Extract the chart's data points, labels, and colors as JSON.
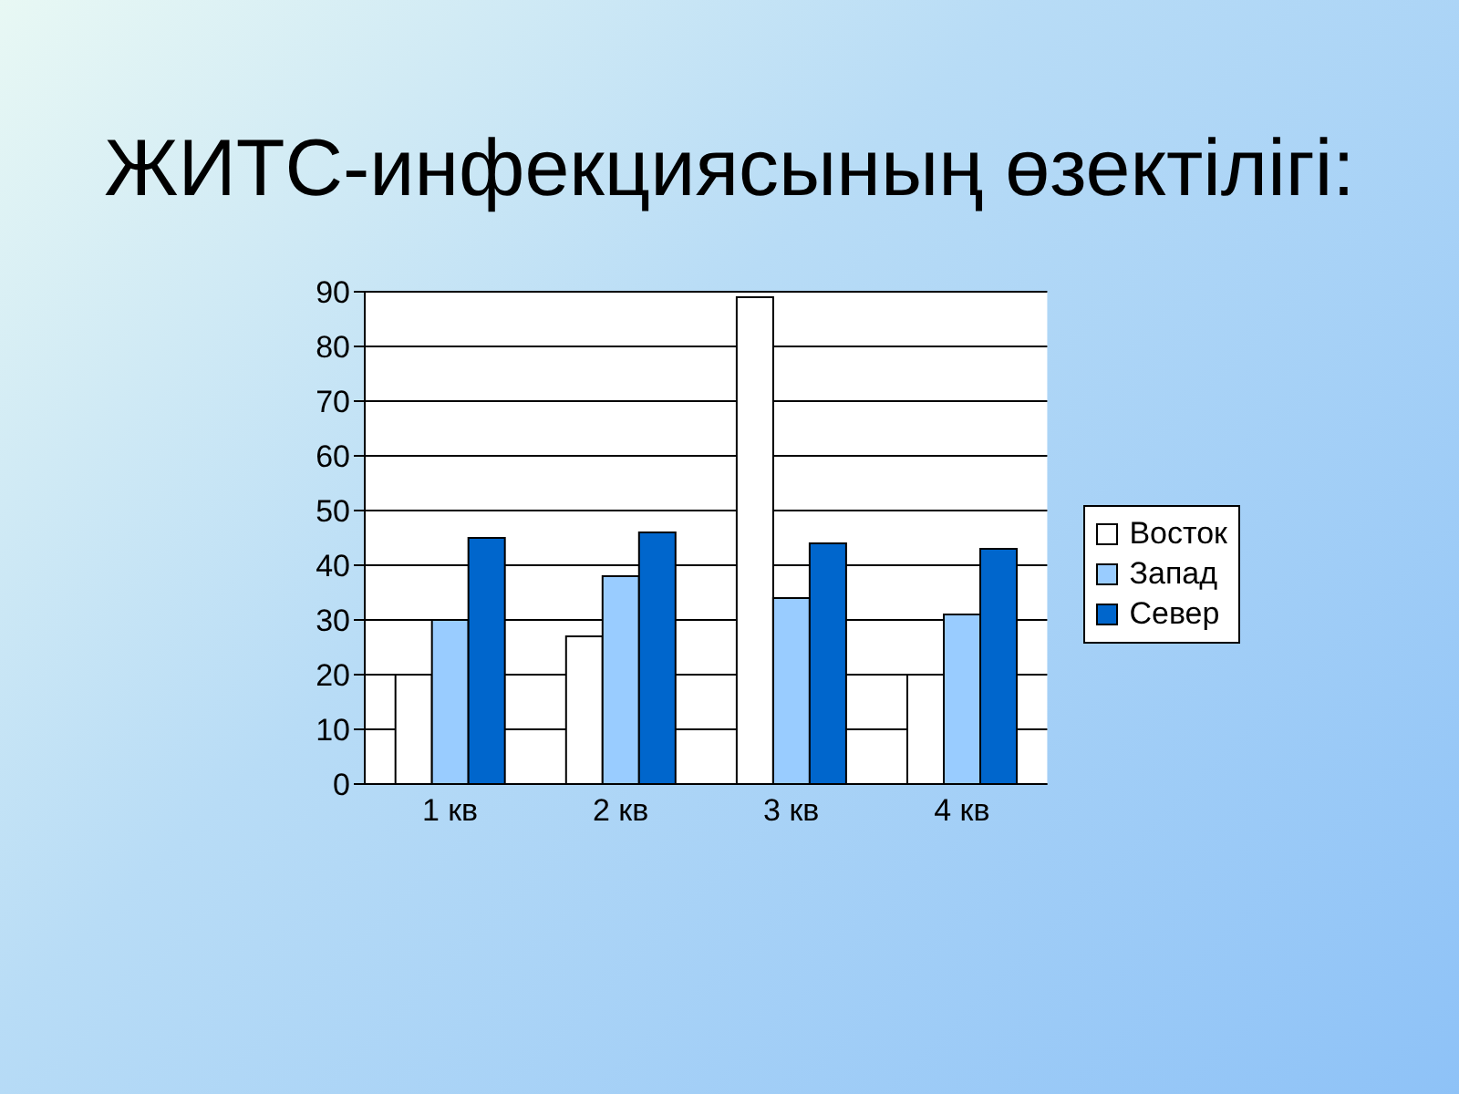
{
  "chart_data": {
    "type": "bar",
    "title": "ЖИТС-инфекциясының өзектілігі:",
    "categories": [
      "1 кв",
      "2 кв",
      "3 кв",
      "4 кв"
    ],
    "series": [
      {
        "name": "Восток",
        "color": "#ffffff",
        "values": [
          20,
          27,
          89,
          20
        ]
      },
      {
        "name": "Запад",
        "color": "#99ccff",
        "values": [
          30,
          38,
          34,
          31
        ]
      },
      {
        "name": "Север",
        "color": "#0066cc",
        "values": [
          45,
          46,
          44,
          43
        ]
      }
    ],
    "ylim": [
      0,
      90
    ],
    "yticks": [
      0,
      10,
      20,
      30,
      40,
      50,
      60,
      70,
      80,
      90
    ],
    "grid": "y",
    "legend": "right"
  }
}
